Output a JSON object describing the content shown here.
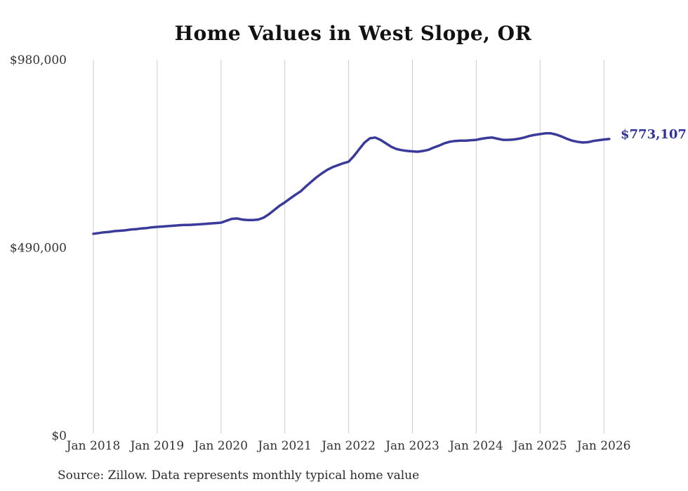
{
  "page": {
    "title": "Home Values in West Slope, OR",
    "latest_value_label": "$773,107",
    "source_note": "Source: Zillow. Data represents monthly typical home value"
  },
  "chart_data": {
    "type": "line",
    "title": "Home Values in West Slope, OR",
    "series_name": "Monthly typical home value",
    "frequency": "monthly",
    "x_start": "2018-01",
    "x_end": "2026-02",
    "x_tick_labels": [
      "Jan 2018",
      "Jan 2019",
      "Jan 2020",
      "Jan 2021",
      "Jan 2022",
      "Jan 2023",
      "Jan 2024",
      "Jan 2025",
      "Jan 2026"
    ],
    "y_ticks": [
      {
        "label": "$0",
        "value": 0
      },
      {
        "label": "$490,000",
        "value": 490000
      },
      {
        "label": "$980,000",
        "value": 980000
      }
    ],
    "ylim": [
      0,
      980000
    ],
    "grid": "vertical-only",
    "legend": "none",
    "line_color": "#3a3a9a",
    "gridline_color": "#cccccc",
    "tick_label_color": "#333333",
    "latest_value": 773107,
    "latest_value_label": "$773,107",
    "values": [
      526000,
      528000,
      530000,
      531000,
      533000,
      534000,
      535000,
      537000,
      538000,
      540000,
      541000,
      543000,
      544000,
      545000,
      546000,
      547000,
      548000,
      549000,
      549000,
      550000,
      551000,
      552000,
      553000,
      554000,
      555000,
      560000,
      565000,
      566000,
      563000,
      562000,
      562000,
      563000,
      568000,
      577000,
      588000,
      599000,
      608000,
      618000,
      628000,
      637000,
      650000,
      662000,
      674000,
      684000,
      693000,
      700000,
      705000,
      710000,
      714000,
      729000,
      747000,
      764000,
      775000,
      777000,
      771000,
      762000,
      753000,
      747000,
      744000,
      742000,
      741000,
      740000,
      742000,
      745000,
      751000,
      756000,
      762000,
      766000,
      768000,
      769000,
      769000,
      770000,
      771000,
      774000,
      776000,
      777000,
      774000,
      771000,
      771000,
      772000,
      774000,
      777000,
      781000,
      784000,
      786000,
      788000,
      788000,
      785000,
      780000,
      774000,
      769000,
      766000,
      764000,
      765000,
      768000,
      770000,
      772000,
      773107
    ]
  }
}
